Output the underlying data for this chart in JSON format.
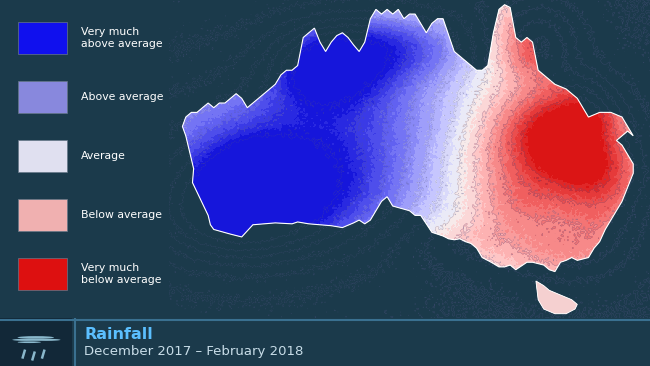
{
  "bg_color": "#1b3a4b",
  "footer_bg": "#152f3d",
  "title": "Rainfall",
  "subtitle": "December 2017 – February 2018",
  "title_color": "#5bbfff",
  "subtitle_color": "#c8dde8",
  "legend_labels": [
    "Very much\nabove average",
    "Above average",
    "Average",
    "Below average",
    "Very much\nbelow average"
  ],
  "legend_colors": [
    "#1010ee",
    "#8888dd",
    "#e0e0f0",
    "#f0b0b0",
    "#dd1010"
  ],
  "figsize": [
    6.5,
    3.66
  ],
  "dpi": 100
}
